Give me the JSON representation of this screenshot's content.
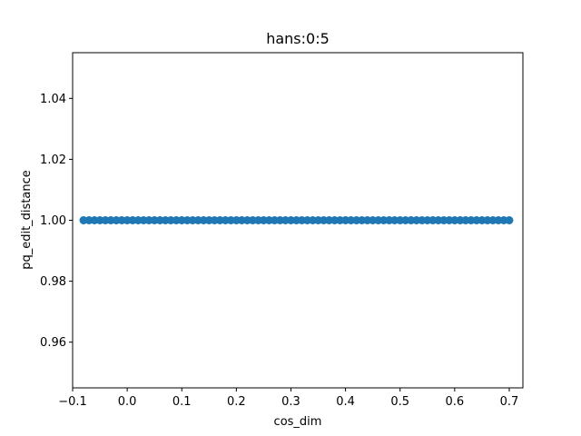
{
  "chart_data": {
    "type": "scatter",
    "title": "hans:0:5",
    "xlabel": "cos_dim",
    "ylabel": "pq_edit_distance",
    "xlim": [
      -0.1,
      0.725
    ],
    "ylim": [
      0.945,
      1.055
    ],
    "xticks": [
      -0.1,
      0.0,
      0.1,
      0.2,
      0.3,
      0.4,
      0.5,
      0.6,
      0.7
    ],
    "xtick_labels": [
      "−0.1",
      "0.0",
      "0.1",
      "0.2",
      "0.3",
      "0.4",
      "0.5",
      "0.6",
      "0.7"
    ],
    "yticks": [
      0.96,
      0.98,
      1.0,
      1.02,
      1.04
    ],
    "ytick_labels": [
      "0.96",
      "0.98",
      "1.00",
      "1.02",
      "1.04"
    ],
    "grid": false,
    "marker_color": "#1f77b4",
    "series": [
      {
        "x_range": [
          -0.08,
          0.7
        ],
        "y": 1.0,
        "x": [
          -0.08,
          -0.07,
          -0.06,
          -0.05,
          -0.04,
          -0.03,
          -0.02,
          -0.01,
          0.0,
          0.01,
          0.02,
          0.03,
          0.04,
          0.05,
          0.06,
          0.07,
          0.08,
          0.09,
          0.1,
          0.11,
          0.12,
          0.13,
          0.14,
          0.15,
          0.16,
          0.17,
          0.18,
          0.19,
          0.2,
          0.21,
          0.22,
          0.23,
          0.24,
          0.25,
          0.26,
          0.27,
          0.28,
          0.29,
          0.3,
          0.31,
          0.32,
          0.33,
          0.34,
          0.35,
          0.36,
          0.37,
          0.38,
          0.39,
          0.4,
          0.41,
          0.42,
          0.43,
          0.44,
          0.45,
          0.46,
          0.47,
          0.48,
          0.49,
          0.5,
          0.51,
          0.52,
          0.53,
          0.54,
          0.55,
          0.56,
          0.57,
          0.58,
          0.59,
          0.6,
          0.61,
          0.62,
          0.63,
          0.64,
          0.65,
          0.66,
          0.67,
          0.68,
          0.69,
          0.7
        ]
      }
    ]
  }
}
